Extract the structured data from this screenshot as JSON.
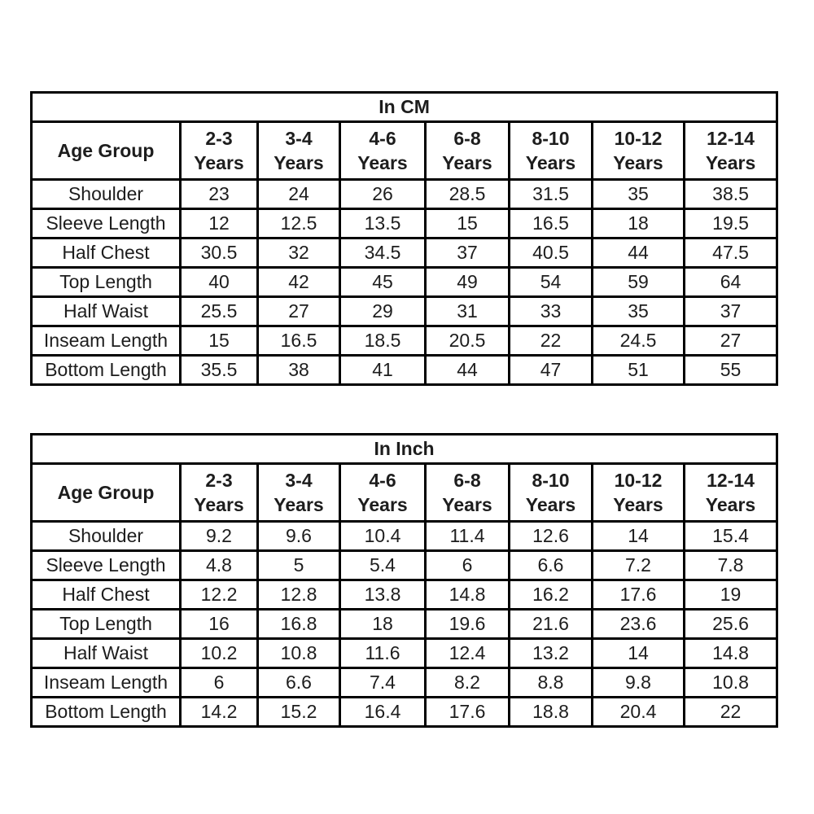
{
  "page": {
    "background_color": "#ffffff",
    "border_color": "#000000",
    "text_color": "#1d1d1d"
  },
  "chart_data": [
    {
      "type": "table",
      "title": "In CM",
      "corner_header": "Age Group",
      "columns": [
        {
          "range": "2-3",
          "unit": "Years"
        },
        {
          "range": "3-4",
          "unit": "Years"
        },
        {
          "range": "4-6",
          "unit": "Years"
        },
        {
          "range": "6-8",
          "unit": "Years"
        },
        {
          "range": "8-10",
          "unit": "Years"
        },
        {
          "range": "10-12",
          "unit": "Years"
        },
        {
          "range": "12-14",
          "unit": "Years"
        }
      ],
      "rows": [
        {
          "label": "Shoulder",
          "values": [
            "23",
            "24",
            "26",
            "28.5",
            "31.5",
            "35",
            "38.5"
          ]
        },
        {
          "label": "Sleeve Length",
          "values": [
            "12",
            "12.5",
            "13.5",
            "15",
            "16.5",
            "18",
            "19.5"
          ]
        },
        {
          "label": "Half Chest",
          "values": [
            "30.5",
            "32",
            "34.5",
            "37",
            "40.5",
            "44",
            "47.5"
          ]
        },
        {
          "label": "Top Length",
          "values": [
            "40",
            "42",
            "45",
            "49",
            "54",
            "59",
            "64"
          ]
        },
        {
          "label": "Half Waist",
          "values": [
            "25.5",
            "27",
            "29",
            "31",
            "33",
            "35",
            "37"
          ]
        },
        {
          "label": "Inseam Length",
          "values": [
            "15",
            "16.5",
            "18.5",
            "20.5",
            "22",
            "24.5",
            "27"
          ]
        },
        {
          "label": "Bottom Length",
          "values": [
            "35.5",
            "38",
            "41",
            "44",
            "47",
            "51",
            "55"
          ]
        }
      ]
    },
    {
      "type": "table",
      "title": "In Inch",
      "corner_header": "Age Group",
      "columns": [
        {
          "range": "2-3",
          "unit": "Years"
        },
        {
          "range": "3-4",
          "unit": "Years"
        },
        {
          "range": "4-6",
          "unit": "Years"
        },
        {
          "range": "6-8",
          "unit": "Years"
        },
        {
          "range": "8-10",
          "unit": "Years"
        },
        {
          "range": "10-12",
          "unit": "Years"
        },
        {
          "range": "12-14",
          "unit": "Years"
        }
      ],
      "rows": [
        {
          "label": "Shoulder",
          "values": [
            "9.2",
            "9.6",
            "10.4",
            "11.4",
            "12.6",
            "14",
            "15.4"
          ]
        },
        {
          "label": "Sleeve Length",
          "values": [
            "4.8",
            "5",
            "5.4",
            "6",
            "6.6",
            "7.2",
            "7.8"
          ]
        },
        {
          "label": "Half Chest",
          "values": [
            "12.2",
            "12.8",
            "13.8",
            "14.8",
            "16.2",
            "17.6",
            "19"
          ]
        },
        {
          "label": "Top Length",
          "values": [
            "16",
            "16.8",
            "18",
            "19.6",
            "21.6",
            "23.6",
            "25.6"
          ]
        },
        {
          "label": "Half Waist",
          "values": [
            "10.2",
            "10.8",
            "11.6",
            "12.4",
            "13.2",
            "14",
            "14.8"
          ]
        },
        {
          "label": "Inseam Length",
          "values": [
            "6",
            "6.6",
            "7.4",
            "8.2",
            "8.8",
            "9.8",
            "10.8"
          ]
        },
        {
          "label": "Bottom Length",
          "values": [
            "14.2",
            "15.2",
            "16.4",
            "17.6",
            "18.8",
            "20.4",
            "22"
          ]
        }
      ]
    }
  ]
}
